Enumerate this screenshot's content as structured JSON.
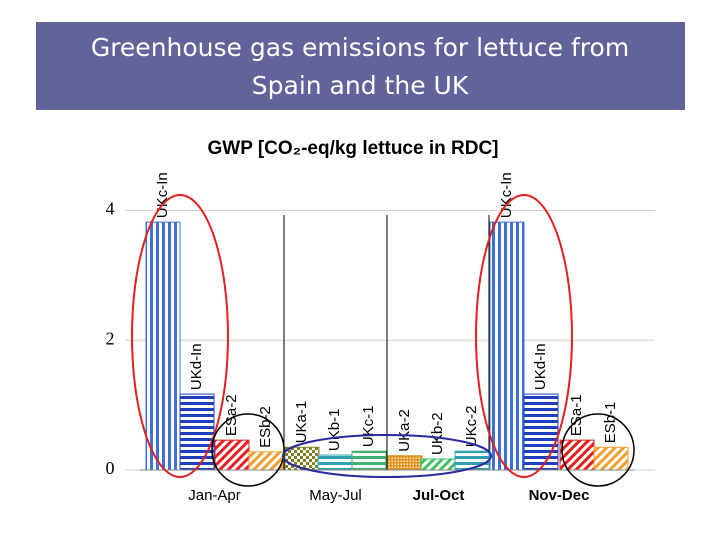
{
  "header": {
    "title_lines": [
      "Greenhouse gas emissions for lettuce from",
      "Spain and the UK"
    ]
  },
  "chart_data": {
    "type": "bar",
    "title": "GWP [CO₂-eq/kg lettuce in RDC]",
    "categories": [
      "UKc-In",
      "UKd-In",
      "ESa-2",
      "ESb-2",
      "UKa-1",
      "UKb-1",
      "UKc-1",
      "UKa-2",
      "UKb-2",
      "UKc-2",
      "UKc-In",
      "UKd-In",
      "ESa-1",
      "ESb-1"
    ],
    "values": [
      3.82,
      1.17,
      0.46,
      0.28,
      0.35,
      0.23,
      0.29,
      0.22,
      0.17,
      0.29,
      3.82,
      1.17,
      0.46,
      0.35
    ],
    "colors": [
      "#3f6fd8",
      "#1f3fbf",
      "#e02020",
      "#f0a030",
      "#808020",
      "#30a0b0",
      "#40b070",
      "#e09020",
      "#40c060",
      "#30a0b0",
      "#3f6fd8",
      "#1f3fbf",
      "#e02020",
      "#f0a030"
    ],
    "groups": [
      "Jan-Apr",
      "May-Jul",
      "Jul-Oct",
      "Nov-Dec"
    ],
    "ylim": [
      0,
      4.5
    ],
    "yticks": [
      0,
      2,
      4
    ],
    "grid": true
  }
}
